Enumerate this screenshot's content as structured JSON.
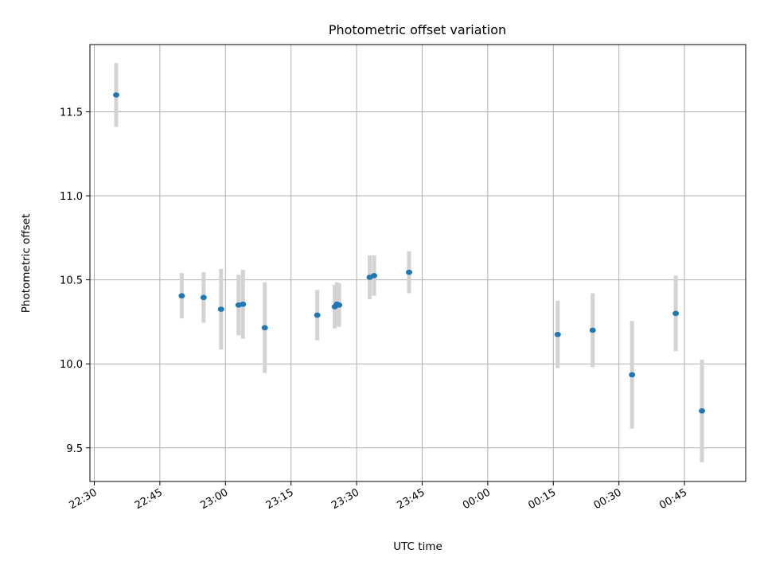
{
  "chart_data": {
    "type": "scatter",
    "title": "Photometric offset variation",
    "xlabel": "UTC time",
    "ylabel": "Photometric offset",
    "x_axis": {
      "kind": "time",
      "ticks": [
        "22:30",
        "22:45",
        "23:00",
        "23:15",
        "23:30",
        "23:45",
        "00:00",
        "00:15",
        "00:30",
        "00:45"
      ],
      "range": [
        "22:29",
        "00:59"
      ]
    },
    "y_axis": {
      "ticks": [
        "9.5",
        "10.0",
        "10.5",
        "11.0",
        "11.5"
      ],
      "range": [
        9.3,
        11.9
      ]
    },
    "grid": true,
    "marker_color": "#1f77b4",
    "errorbar_color": "#d3d3d3",
    "points": [
      {
        "time": "22:35",
        "y": 11.6,
        "err": 0.19
      },
      {
        "time": "22:50",
        "y": 10.405,
        "err": 0.135
      },
      {
        "time": "22:55",
        "y": 10.395,
        "err": 0.15
      },
      {
        "time": "22:59",
        "y": 10.325,
        "err": 0.24
      },
      {
        "time": "23:03",
        "y": 10.35,
        "err": 0.18
      },
      {
        "time": "23:04",
        "y": 10.355,
        "err": 0.205
      },
      {
        "time": "23:09",
        "y": 10.215,
        "err": 0.27
      },
      {
        "time": "23:21",
        "y": 10.29,
        "err": 0.15
      },
      {
        "time": "23:25",
        "y": 10.34,
        "err": 0.13
      },
      {
        "time": "23:25:30",
        "y": 10.355,
        "err": 0.13
      },
      {
        "time": "23:26",
        "y": 10.35,
        "err": 0.13
      },
      {
        "time": "23:33",
        "y": 10.515,
        "err": 0.13
      },
      {
        "time": "23:34",
        "y": 10.525,
        "err": 0.12
      },
      {
        "time": "23:42",
        "y": 10.545,
        "err": 0.125
      },
      {
        "time": "00:16",
        "y": 10.175,
        "err": 0.2
      },
      {
        "time": "00:24",
        "y": 10.2,
        "err": 0.22
      },
      {
        "time": "00:33",
        "y": 9.935,
        "err": 0.32
      },
      {
        "time": "00:43",
        "y": 10.3,
        "err": 0.225
      },
      {
        "time": "00:49",
        "y": 9.72,
        "err": 0.305
      }
    ]
  }
}
